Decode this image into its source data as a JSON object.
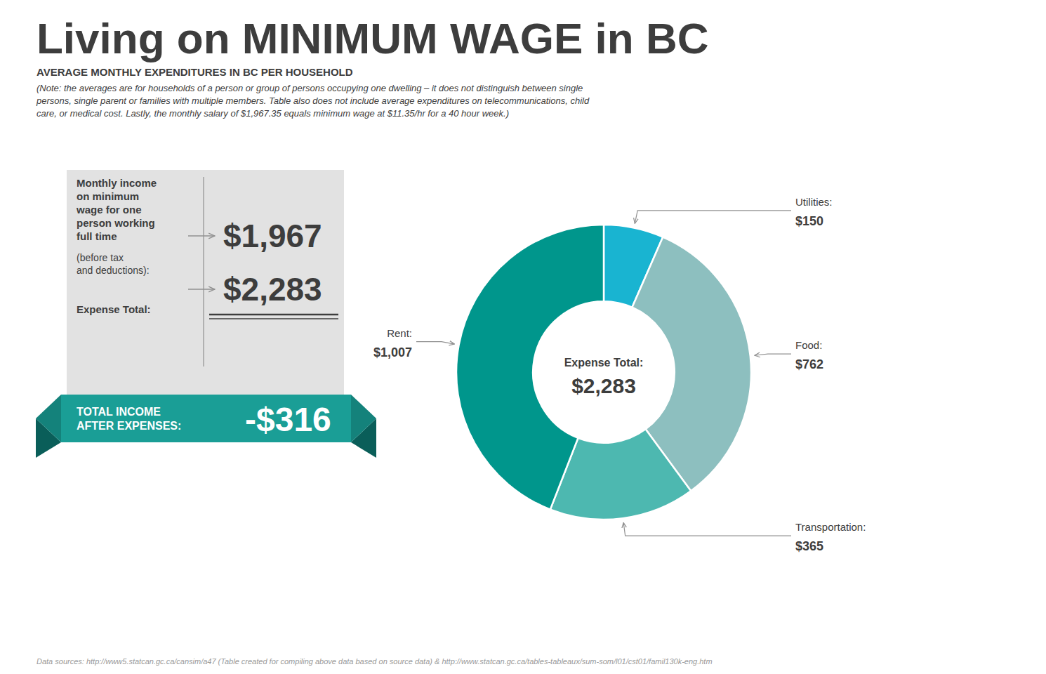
{
  "chart_data": {
    "type": "pie",
    "title": "Living on MINIMUM WAGE in BC",
    "subtitle": "AVERAGE MONTHLY EXPENDITURES IN BC PER HOUSEHOLD",
    "categories": [
      "Utilities:",
      "Food:",
      "Transportation:",
      "Rent:"
    ],
    "values": [
      150,
      762,
      365,
      1007
    ],
    "value_labels": [
      "$150",
      "$762",
      "$365",
      "$1,007"
    ],
    "colors": [
      "#19b4d1",
      "#8dbfbf",
      "#4db8b0",
      "#00968c"
    ],
    "data_labels": true,
    "annotations": [
      "(Note: the averages are for households of a person or group of persons occupying one dwelling – it does not distinguish between single",
      "persons, single parent or families with multiple members. Table also does not include average expenditures on telecommunications, child",
      "care, or medical cost. Lastly, the monthly salary of $1,967.35 equals minimum wage at $11.35/hr for a 40 hour week.)",
      "Monthly income\non minimum\nwage for one\nperson working\nfull time",
      "(before tax\nand deductions):",
      "Expense Total:",
      "$1,967",
      "$2,283",
      "TOTAL INCOME\nAFTER EXPENSES:",
      "-$316",
      "Expense Total:",
      "$2,283",
      "Data sources: http://www5.statcan.gc.ca/cansim/a47 (Table created for compiling above data based on source data) & http://www.statcan.gc.ca/tables-tableaux/sum-som/l01/cst01/famil130k-eng.htm"
    ]
  }
}
